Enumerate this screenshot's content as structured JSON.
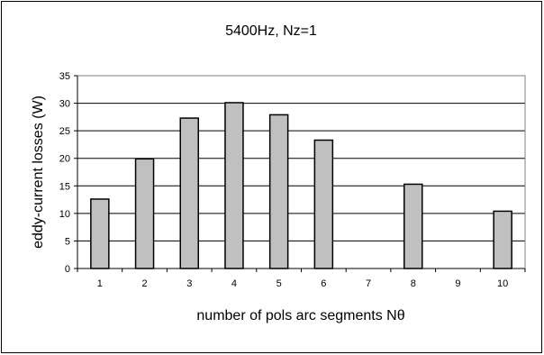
{
  "chart_data": {
    "type": "bar",
    "title": "5400Hz, Nz=1",
    "xlabel": "number of pols arc segments Nθ",
    "ylabel": "eddy-current losses (W)",
    "categories": [
      "1",
      "2",
      "3",
      "4",
      "5",
      "6",
      "7",
      "8",
      "9",
      "10"
    ],
    "values": [
      12.6,
      19.9,
      27.3,
      30.1,
      27.9,
      23.3,
      null,
      15.3,
      null,
      10.4
    ],
    "ylim": [
      0,
      35
    ],
    "yticks": [
      "0",
      "5",
      "10",
      "15",
      "20",
      "25",
      "30",
      "35"
    ],
    "grid": true,
    "bar_color": "#c0c0c0"
  }
}
